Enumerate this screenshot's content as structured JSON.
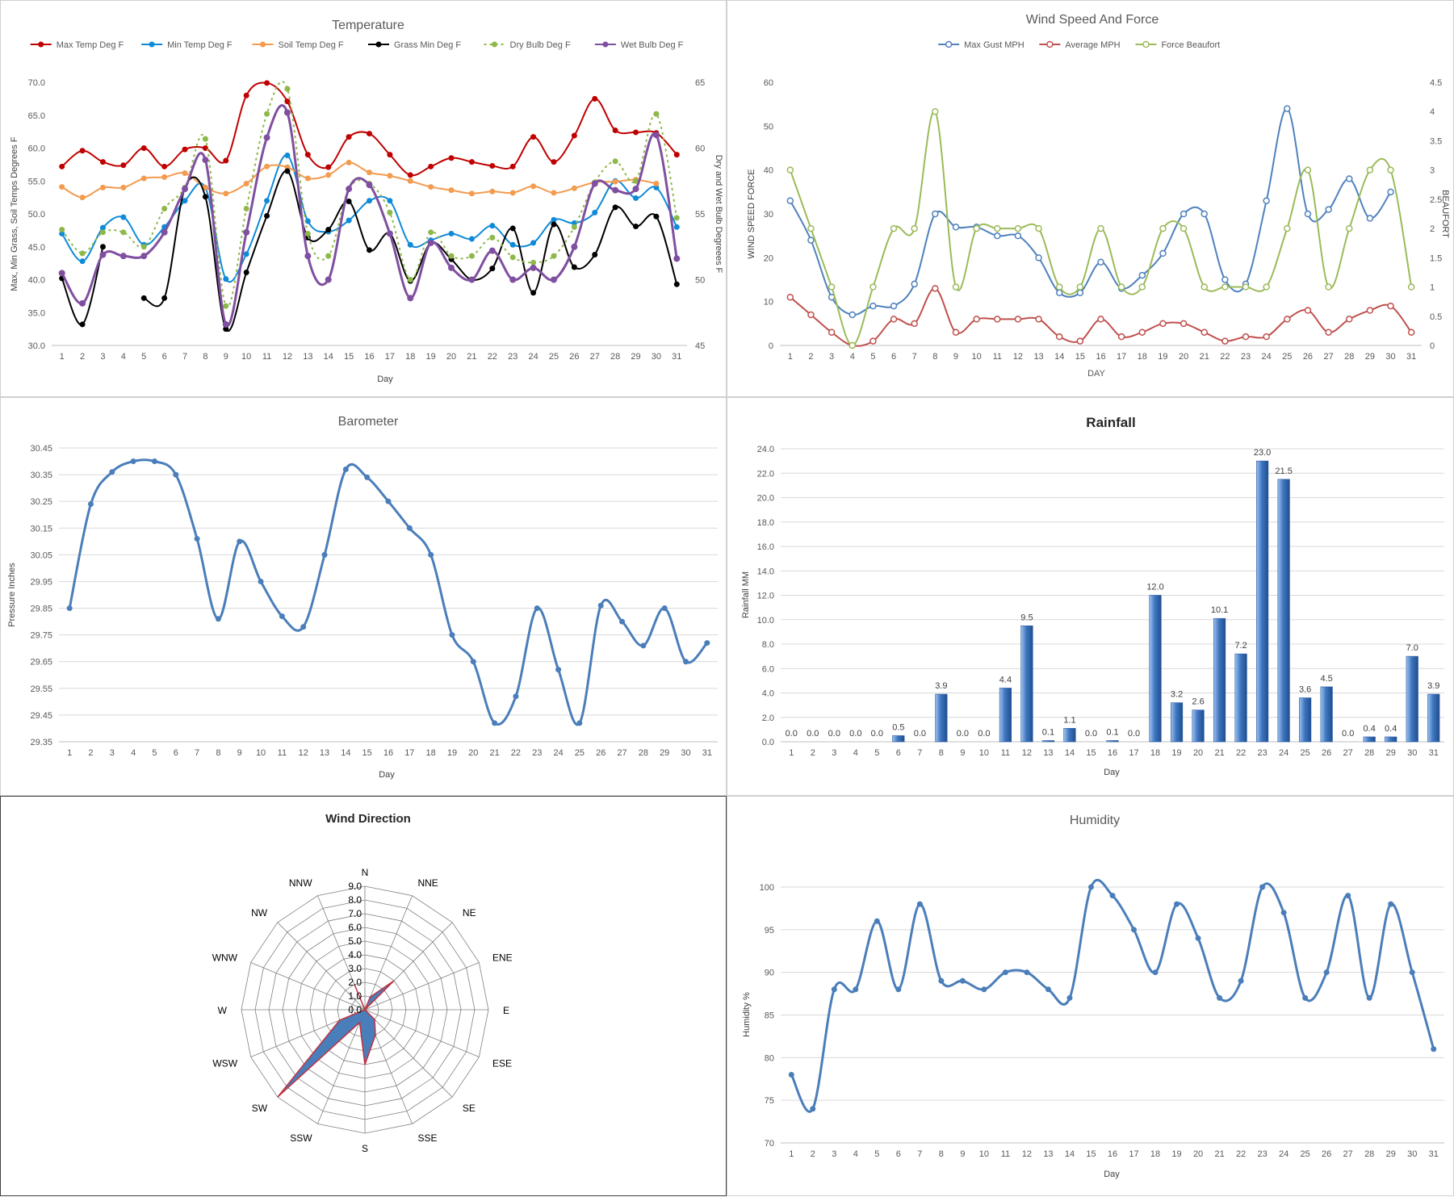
{
  "colors": {
    "axis": "#bfbfbf",
    "grid": "#d9d9d9",
    "tick_text": "#595959",
    "title_text": "#595959",
    "max_temp": "#c00000",
    "min_temp": "#0f8ad8",
    "soil_temp": "#f39b4f",
    "grass_min": "#000000",
    "dry_bulb": "#8db84a",
    "wet_bulb": "#7f4fa0",
    "max_gust": "#4f81bd",
    "avg_mph": "#c0504d",
    "beaufort": "#9bbb59",
    "barometer": "#4a7eba",
    "rain_bar": "#3a6db3",
    "humidity": "#4a7eba",
    "radar_fill": "#4a7ebb",
    "radar_line": "#c0313d",
    "radar_grid": "#808080"
  },
  "temperature": {
    "chart_data": {
      "type": "line",
      "title": "Temperature",
      "xlabel": "Day",
      "ylabel": "Max, Min Grass, Soil Temps Degrees F",
      "y2label": "Dry and Wet Bulb Degreees F",
      "categories": [
        "1",
        "2",
        "3",
        "4",
        "5",
        "6",
        "7",
        "8",
        "9",
        "10",
        "11",
        "12",
        "13",
        "14",
        "15",
        "16",
        "17",
        "18",
        "19",
        "20",
        "21",
        "22",
        "23",
        "24",
        "25",
        "26",
        "27",
        "28",
        "29",
        "30",
        "31"
      ],
      "ylim": [
        30,
        70
      ],
      "yticks": [
        "30.0",
        "35.0",
        "40.0",
        "45.0",
        "50.0",
        "55.0",
        "60.0",
        "65.0",
        "70.0"
      ],
      "y2lim": [
        45,
        65
      ],
      "y2ticks": [
        "45",
        "50",
        "55",
        "60",
        "65"
      ],
      "legend_position": "top",
      "series": [
        {
          "name": "Max Temp Deg F",
          "axis": "left",
          "values": [
            57.2,
            59.6,
            57.9,
            57.4,
            60.0,
            57.2,
            59.8,
            60.0,
            58.1,
            68.0,
            69.9,
            67.1,
            59.0,
            57.1,
            61.7,
            62.2,
            59.0,
            55.9,
            57.2,
            58.5,
            57.9,
            57.3,
            57.2,
            61.7,
            57.9,
            61.9,
            67.5,
            62.7,
            62.4,
            62.3,
            59.0
          ]
        },
        {
          "name": "Min Temp Deg F",
          "axis": "left",
          "values": [
            47.0,
            42.8,
            47.9,
            49.5,
            45.3,
            48.0,
            52.0,
            54.0,
            40.1,
            43.9,
            52.0,
            58.9,
            48.9,
            47.3,
            49.0,
            52.0,
            52.0,
            45.3,
            46.0,
            47.0,
            46.2,
            48.2,
            45.3,
            45.6,
            49.1,
            48.6,
            50.2,
            55.0,
            52.4,
            54.0,
            48.0
          ]
        },
        {
          "name": "Soil Temp Deg F",
          "axis": "left",
          "values": [
            54.1,
            52.5,
            54.0,
            54.0,
            55.4,
            55.6,
            56.2,
            54.0,
            53.1,
            54.6,
            57.2,
            57.1,
            55.4,
            55.9,
            57.8,
            56.3,
            55.8,
            55.0,
            54.1,
            53.6,
            53.1,
            53.4,
            53.2,
            54.2,
            53.2,
            53.9,
            54.8,
            54.9,
            55.2,
            54.6,
            null
          ]
        },
        {
          "name": "Grass Min Deg F",
          "axis": "left",
          "values": [
            40.2,
            33.2,
            45.0,
            null,
            37.2,
            37.2,
            53.9,
            52.6,
            32.5,
            41.1,
            49.7,
            56.5,
            46.4,
            47.6,
            51.9,
            44.5,
            47.0,
            39.8,
            45.6,
            43.1,
            40.0,
            41.7,
            47.8,
            38.0,
            48.4,
            41.9,
            43.8,
            51.0,
            48.1,
            49.6,
            39.3
          ]
        },
        {
          "name": "Dry Bulb Deg F",
          "axis": "right",
          "values": [
            53.8,
            52.0,
            53.6,
            53.6,
            52.5,
            55.4,
            57.0,
            60.7,
            48.0,
            55.4,
            62.6,
            64.5,
            53.5,
            51.8,
            56.9,
            57.3,
            55.1,
            50.0,
            53.6,
            51.8,
            51.8,
            53.2,
            51.7,
            51.3,
            51.8,
            54.0,
            57.4,
            59.0,
            57.5,
            62.6,
            54.7
          ]
        },
        {
          "name": "Wet Bulb Deg F",
          "axis": "right",
          "values": [
            50.5,
            48.2,
            51.9,
            51.8,
            51.8,
            53.6,
            56.9,
            59.1,
            46.6,
            53.6,
            60.8,
            62.7,
            51.8,
            50.0,
            56.9,
            57.2,
            53.5,
            48.6,
            52.8,
            50.9,
            50.0,
            52.2,
            50.0,
            50.9,
            50.0,
            52.5,
            57.3,
            56.8,
            56.9,
            61.0,
            51.6
          ]
        }
      ]
    }
  },
  "wind": {
    "chart_data": {
      "type": "line",
      "title": "Wind Speed And Force",
      "xlabel": "DAY",
      "ylabel": "WIND SPEED FORCE",
      "y2label": "BEAUFORT",
      "categories": [
        "1",
        "2",
        "3",
        "4",
        "5",
        "6",
        "7",
        "8",
        "9",
        "10",
        "11",
        "12",
        "13",
        "14",
        "15",
        "16",
        "17",
        "18",
        "19",
        "20",
        "21",
        "22",
        "23",
        "24",
        "25",
        "26",
        "27",
        "28",
        "29",
        "30",
        "31"
      ],
      "ylim": [
        0,
        60
      ],
      "yticks": [
        "0",
        "10",
        "20",
        "30",
        "40",
        "50",
        "60"
      ],
      "y2lim": [
        0,
        4.5
      ],
      "y2ticks": [
        "0",
        "0.5",
        "1",
        "1.5",
        "2",
        "2.5",
        "3",
        "3.5",
        "4",
        "4.5"
      ],
      "legend_position": "top",
      "series": [
        {
          "name": "Max Gust MPH",
          "axis": "left",
          "values": [
            33,
            24,
            11,
            7,
            9,
            9,
            14,
            30,
            27,
            27,
            25,
            25,
            20,
            12,
            12,
            19,
            13,
            16,
            21,
            30,
            30,
            15,
            14,
            33,
            54,
            30,
            31,
            38,
            29,
            35,
            null
          ]
        },
        {
          "name": "Average MPH",
          "axis": "left",
          "values": [
            11,
            7,
            3,
            0,
            1,
            6,
            5,
            13,
            3,
            6,
            6,
            6,
            6,
            2,
            1,
            6,
            2,
            3,
            5,
            5,
            3,
            1,
            2,
            2,
            6,
            8,
            3,
            6,
            8,
            9,
            3
          ]
        },
        {
          "name": "Force Beaufort",
          "axis": "right",
          "values": [
            3,
            2,
            1,
            0,
            1,
            2,
            2,
            4,
            1,
            2,
            2,
            2,
            2,
            1,
            1,
            2,
            1,
            1,
            2,
            2,
            1,
            1,
            1,
            1,
            2,
            3,
            1,
            2,
            3,
            3,
            1
          ]
        }
      ]
    }
  },
  "barometer": {
    "chart_data": {
      "type": "line",
      "title": "Barometer",
      "xlabel": "Day",
      "ylabel": "Pressure Inches",
      "categories": [
        "1",
        "2",
        "3",
        "4",
        "5",
        "6",
        "7",
        "8",
        "9",
        "10",
        "11",
        "12",
        "13",
        "14",
        "15",
        "16",
        "17",
        "18",
        "19",
        "20",
        "21",
        "22",
        "23",
        "24",
        "25",
        "26",
        "27",
        "28",
        "29",
        "30",
        "31"
      ],
      "ylim": [
        29.35,
        30.45
      ],
      "yticks": [
        "29.35",
        "29.45",
        "29.55",
        "29.65",
        "29.75",
        "29.85",
        "29.95",
        "30.05",
        "30.15",
        "30.25",
        "30.35",
        "30.45"
      ],
      "series": [
        {
          "name": "",
          "values": [
            29.85,
            30.24,
            30.36,
            30.4,
            30.4,
            30.35,
            30.11,
            29.81,
            30.1,
            29.95,
            29.82,
            29.78,
            30.05,
            30.37,
            30.34,
            30.25,
            30.15,
            30.05,
            29.75,
            29.65,
            29.42,
            29.52,
            29.85,
            29.62,
            29.42,
            29.86,
            29.8,
            29.71,
            29.85,
            29.65,
            29.72
          ]
        }
      ]
    }
  },
  "rainfall": {
    "chart_data": {
      "type": "bar",
      "title": "Rainfall",
      "xlabel": "Day",
      "ylabel": "Rainfall MM",
      "categories": [
        "1",
        "2",
        "3",
        "4",
        "5",
        "6",
        "7",
        "8",
        "9",
        "10",
        "11",
        "12",
        "13",
        "14",
        "15",
        "16",
        "17",
        "18",
        "19",
        "20",
        "21",
        "22",
        "23",
        "24",
        "25",
        "26",
        "27",
        "28",
        "29",
        "30",
        "31"
      ],
      "values": [
        0.0,
        0.0,
        0.0,
        0.0,
        0.0,
        0.5,
        0.0,
        3.9,
        0.0,
        0.0,
        4.4,
        9.5,
        0.1,
        1.1,
        0.0,
        0.1,
        0.0,
        12.0,
        3.2,
        2.6,
        10.1,
        7.2,
        23.0,
        21.5,
        3.6,
        4.5,
        0.0,
        0.4,
        0.4,
        7.0,
        3.9
      ],
      "labels": [
        "0.0",
        "0.0",
        "0.0",
        "0.0",
        "0.0",
        "0.5",
        "0.0",
        "3.9",
        "0.0",
        "0.0",
        "4.4",
        "9.5",
        "0.1",
        "1.1",
        "0.0",
        "0.1",
        "0.0",
        "12.0",
        "3.2",
        "2.6",
        "10.1",
        "7.2",
        "23.0",
        "21.5",
        "3.6",
        "4.5",
        "0.0",
        "0.4",
        "0.4",
        "7.0",
        "3.9"
      ],
      "ylim": [
        0,
        24
      ],
      "yticks": [
        "0.0",
        "2.0",
        "4.0",
        "6.0",
        "8.0",
        "10.0",
        "12.0",
        "14.0",
        "16.0",
        "18.0",
        "20.0",
        "22.0",
        "24.0"
      ]
    }
  },
  "wind_direction": {
    "chart_data": {
      "type": "radar",
      "title": "Wind Direction",
      "categories": [
        "N",
        "NNE",
        "NE",
        "ENE",
        "E",
        "ESE",
        "SE",
        "SSE",
        "S",
        "SSW",
        "SW",
        "WSW",
        "W",
        "WNW",
        "NW",
        "NNW"
      ],
      "values": [
        0,
        1,
        3,
        0,
        0,
        0,
        1,
        2,
        4,
        1,
        9,
        2,
        0,
        0,
        0,
        2
      ],
      "rlim": [
        0,
        9
      ],
      "rticks": [
        "0.0",
        "1.0",
        "2.0",
        "3.0",
        "4.0",
        "5.0",
        "6.0",
        "7.0",
        "8.0",
        "9.0"
      ]
    }
  },
  "humidity": {
    "chart_data": {
      "type": "line",
      "title": "Humidity",
      "xlabel": "Day",
      "ylabel": "Humidity %",
      "categories": [
        "1",
        "2",
        "3",
        "4",
        "5",
        "6",
        "7",
        "8",
        "9",
        "10",
        "11",
        "12",
        "13",
        "14",
        "15",
        "16",
        "17",
        "18",
        "19",
        "20",
        "21",
        "22",
        "23",
        "24",
        "25",
        "26",
        "27",
        "28",
        "29",
        "30",
        "31"
      ],
      "ylim": [
        70,
        100
      ],
      "yticks": [
        "70",
        "75",
        "80",
        "85",
        "90",
        "95",
        "100"
      ],
      "series": [
        {
          "name": "",
          "values": [
            78,
            74,
            88,
            88,
            96,
            88,
            98,
            89,
            89,
            88,
            90,
            90,
            88,
            87,
            100,
            99,
            95,
            90,
            98,
            94,
            87,
            89,
            100,
            97,
            87,
            90,
            99,
            87,
            98,
            90,
            81
          ]
        }
      ]
    }
  }
}
